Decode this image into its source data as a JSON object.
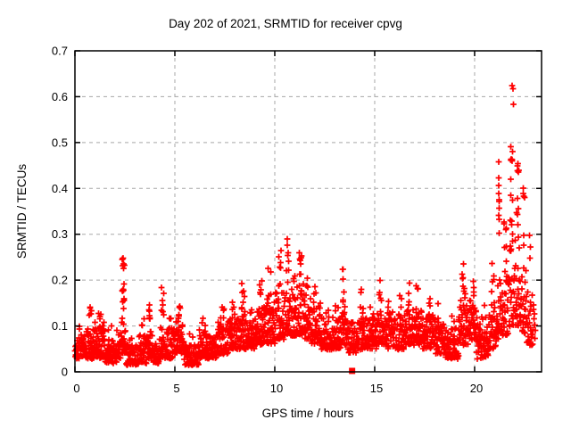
{
  "chart_data": {
    "type": "scatter",
    "title": "Day 202 of 2021, SRMTID for receiver cpvg",
    "xlabel": "GPS time / hours",
    "ylabel": "SRMTID / TECUs",
    "x_range": [
      0,
      23.35
    ],
    "y_range": [
      0,
      0.7
    ],
    "x_ticks": [
      {
        "value": 0,
        "label": "0"
      },
      {
        "value": 5,
        "label": "5"
      },
      {
        "value": 10,
        "label": "10"
      },
      {
        "value": 15,
        "label": "15"
      },
      {
        "value": 20,
        "label": "20"
      }
    ],
    "y_ticks": [
      {
        "value": 0.0,
        "label": "0"
      },
      {
        "value": 0.1,
        "label": "0.1"
      },
      {
        "value": 0.2,
        "label": "0.2"
      },
      {
        "value": 0.3,
        "label": "0.3"
      },
      {
        "value": 0.4,
        "label": "0.4"
      },
      {
        "value": 0.5,
        "label": "0.5"
      },
      {
        "value": 0.6,
        "label": "0.6"
      },
      {
        "value": 0.7,
        "label": "0.7"
      }
    ],
    "grid": true,
    "legend": "none",
    "marker": {
      "shape": "plus",
      "color": "#ff0000",
      "size": 7
    },
    "grid_color": "#a8a8a8",
    "border_color": "#000000",
    "background_color": "#ffffff",
    "observed_max": {
      "x": 21.9,
      "y": 0.624
    },
    "density_bins_format": [
      "x_start",
      "x_end",
      "y_low",
      "y_high",
      "n_points",
      "n_spike_points",
      "spike_y_low",
      "spike_y_high"
    ],
    "density_bins": [
      [
        0.0,
        0.5,
        0.03,
        0.08,
        48,
        2,
        0.085,
        0.105
      ],
      [
        0.5,
        1.0,
        0.03,
        0.095,
        48,
        6,
        0.1,
        0.148
      ],
      [
        1.0,
        1.5,
        0.03,
        0.11,
        48,
        4,
        0.115,
        0.138
      ],
      [
        1.5,
        2.1,
        0.02,
        0.07,
        57,
        2,
        0.075,
        0.1
      ],
      [
        2.1,
        2.3,
        0.03,
        0.095,
        19,
        0,
        0,
        0
      ],
      [
        2.3,
        2.55,
        0.04,
        0.12,
        24,
        16,
        0.13,
        0.25
      ],
      [
        2.55,
        3.2,
        0.015,
        0.06,
        62,
        2,
        0.065,
        0.08
      ],
      [
        3.2,
        3.6,
        0.02,
        0.08,
        38,
        3,
        0.09,
        0.125
      ],
      [
        3.6,
        3.9,
        0.03,
        0.09,
        29,
        7,
        0.1,
        0.17
      ],
      [
        3.9,
        4.2,
        0.02,
        0.06,
        29,
        0,
        0,
        0
      ],
      [
        4.2,
        4.6,
        0.03,
        0.1,
        38,
        7,
        0.11,
        0.19
      ],
      [
        4.6,
        5.0,
        0.03,
        0.095,
        38,
        3,
        0.1,
        0.125
      ],
      [
        5.0,
        5.45,
        0.04,
        0.11,
        43,
        6,
        0.115,
        0.145
      ],
      [
        5.45,
        6.2,
        0.015,
        0.06,
        71,
        2,
        0.065,
        0.085
      ],
      [
        6.2,
        6.7,
        0.03,
        0.09,
        48,
        3,
        0.095,
        0.12
      ],
      [
        6.7,
        7.1,
        0.03,
        0.08,
        38,
        0,
        0,
        0
      ],
      [
        7.1,
        7.7,
        0.04,
        0.11,
        57,
        5,
        0.115,
        0.17
      ],
      [
        7.7,
        8.2,
        0.05,
        0.12,
        48,
        4,
        0.125,
        0.155
      ],
      [
        8.2,
        8.6,
        0.05,
        0.13,
        38,
        7,
        0.135,
        0.21
      ],
      [
        8.6,
        9.1,
        0.05,
        0.12,
        48,
        3,
        0.125,
        0.15
      ],
      [
        9.1,
        9.5,
        0.06,
        0.15,
        38,
        5,
        0.155,
        0.2
      ],
      [
        9.5,
        10.0,
        0.06,
        0.16,
        48,
        5,
        0.165,
        0.23
      ],
      [
        10.0,
        10.45,
        0.07,
        0.18,
        43,
        7,
        0.185,
        0.27
      ],
      [
        10.45,
        10.8,
        0.08,
        0.18,
        33,
        7,
        0.185,
        0.285
      ],
      [
        10.8,
        11.1,
        0.08,
        0.18,
        29,
        4,
        0.185,
        0.22
      ],
      [
        11.1,
        11.45,
        0.08,
        0.2,
        33,
        7,
        0.205,
        0.26
      ],
      [
        11.45,
        11.8,
        0.07,
        0.17,
        33,
        4,
        0.175,
        0.225
      ],
      [
        11.8,
        12.3,
        0.06,
        0.15,
        48,
        3,
        0.155,
        0.19
      ],
      [
        12.3,
        12.9,
        0.05,
        0.12,
        57,
        2,
        0.125,
        0.14
      ],
      [
        12.9,
        13.3,
        0.05,
        0.12,
        38,
        3,
        0.125,
        0.155
      ],
      [
        13.3,
        13.6,
        0.06,
        0.13,
        29,
        6,
        0.14,
        0.225
      ],
      [
        13.6,
        14.1,
        0.04,
        0.11,
        48,
        0,
        0,
        0
      ],
      [
        14.1,
        14.6,
        0.05,
        0.12,
        48,
        5,
        0.125,
        0.185
      ],
      [
        14.6,
        15.1,
        0.05,
        0.12,
        48,
        2,
        0.125,
        0.15
      ],
      [
        15.1,
        15.5,
        0.06,
        0.14,
        38,
        5,
        0.145,
        0.21
      ],
      [
        15.5,
        16.1,
        0.05,
        0.13,
        57,
        2,
        0.135,
        0.16
      ],
      [
        16.1,
        16.5,
        0.05,
        0.13,
        38,
        3,
        0.135,
        0.17
      ],
      [
        16.5,
        16.9,
        0.06,
        0.14,
        38,
        4,
        0.145,
        0.2
      ],
      [
        16.9,
        17.4,
        0.06,
        0.14,
        48,
        4,
        0.145,
        0.21
      ],
      [
        17.4,
        18.0,
        0.05,
        0.13,
        57,
        3,
        0.135,
        0.165
      ],
      [
        18.0,
        18.5,
        0.04,
        0.12,
        48,
        1,
        0.125,
        0.15
      ],
      [
        18.5,
        19.2,
        0.03,
        0.1,
        67,
        2,
        0.105,
        0.13
      ],
      [
        19.2,
        19.7,
        0.06,
        0.16,
        48,
        7,
        0.165,
        0.235
      ],
      [
        19.7,
        20.1,
        0.07,
        0.16,
        38,
        4,
        0.165,
        0.21
      ],
      [
        20.1,
        20.7,
        0.03,
        0.12,
        57,
        1,
        0.125,
        0.15
      ],
      [
        20.7,
        21.1,
        0.05,
        0.15,
        38,
        5,
        0.155,
        0.25
      ],
      [
        21.1,
        21.35,
        0.07,
        0.2,
        24,
        10,
        0.25,
        0.47
      ],
      [
        21.35,
        21.7,
        0.08,
        0.22,
        33,
        8,
        0.225,
        0.33
      ],
      [
        21.7,
        22.0,
        0.1,
        0.3,
        29,
        12,
        0.31,
        0.55
      ],
      [
        22.0,
        22.3,
        0.1,
        0.3,
        29,
        10,
        0.31,
        0.5
      ],
      [
        22.3,
        22.6,
        0.08,
        0.25,
        28,
        6,
        0.26,
        0.42
      ],
      [
        22.6,
        22.9,
        0.06,
        0.18,
        24,
        3,
        0.19,
        0.3
      ],
      [
        22.9,
        23.05,
        0.07,
        0.15,
        10,
        0,
        0,
        0
      ]
    ],
    "notable_points": [
      [
        2.42,
        0.248
      ],
      [
        10.62,
        0.29
      ],
      [
        11.23,
        0.26
      ],
      [
        13.42,
        0.224
      ],
      [
        19.45,
        0.235
      ],
      [
        21.88,
        0.624
      ],
      [
        21.92,
        0.617
      ],
      [
        21.95,
        0.583
      ]
    ],
    "square_point": {
      "x": 13.87,
      "y": 0.002,
      "marker": "filled-square",
      "color": "#ff0000"
    }
  }
}
